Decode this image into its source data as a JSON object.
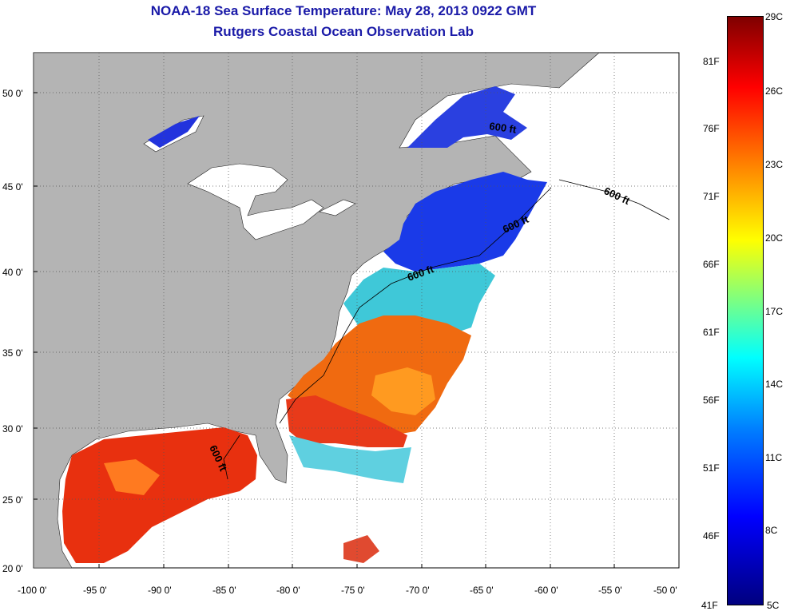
{
  "title_line1": "NOAA-18 Sea Surface Temperature:  May 28, 2013 0922 GMT",
  "title_line2": "Rutgers Coastal Ocean Observation Lab",
  "lat_labels": [
    "50 0'",
    "45 0'",
    "40 0'",
    "35 0'",
    "30 0'",
    "25 0'",
    "20 0'"
  ],
  "lon_labels": [
    "-100 0'",
    "-95 0'",
    "-90 0'",
    "-85 0'",
    "-80 0'",
    "-75 0'",
    "-70 0'",
    "-65 0'",
    "-60 0'",
    "-55 0'",
    "-50 0'"
  ],
  "contour_label": "600 ft",
  "colorbar": {
    "celsius": [
      "29C",
      "26C",
      "23C",
      "20C",
      "17C",
      "14C",
      "11C",
      "8C",
      "5C"
    ],
    "fahrenheit": [
      "81F",
      "76F",
      "71F",
      "66F",
      "61F",
      "56F",
      "51F",
      "46F",
      "41F"
    ]
  },
  "colors": {
    "title": "#1a1aa8",
    "land": "#b4b4b4",
    "grid": "#555555"
  }
}
